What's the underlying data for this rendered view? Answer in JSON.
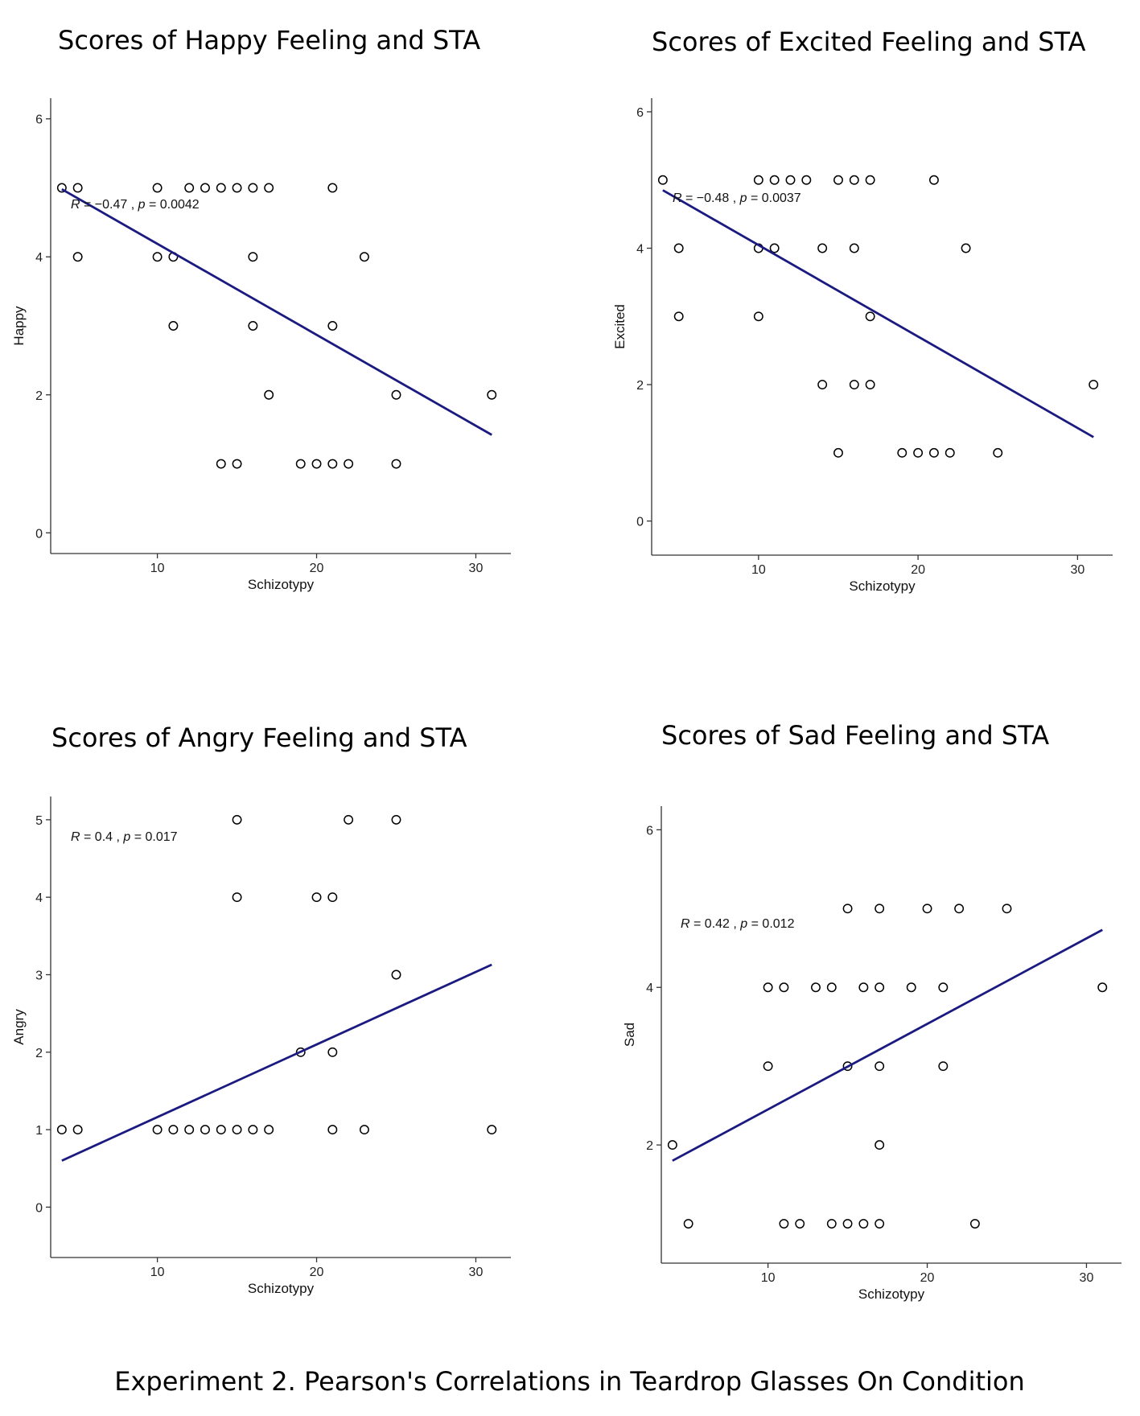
{
  "caption": "Experiment 2. Pearson's Correlations in Teardrop Glasses On Condition",
  "chart_data": [
    {
      "type": "scatter",
      "title": "Scores of Happy Feeling and STA",
      "xlabel": "Schizotypy",
      "ylabel": "Happy",
      "xlim": [
        3.3,
        32.2
      ],
      "ylim": [
        -0.3,
        6.3
      ],
      "xticks": [
        10,
        20,
        30
      ],
      "yticks": [
        0,
        2,
        4,
        6
      ],
      "annotation": {
        "r_label": "R",
        "r_value": " = −0.47 , ",
        "p_label": "p",
        "p_value": " = 0.0042"
      },
      "points": [
        [
          4,
          5
        ],
        [
          5,
          5
        ],
        [
          5,
          4
        ],
        [
          10,
          5
        ],
        [
          10,
          4
        ],
        [
          11,
          4
        ],
        [
          11,
          3
        ],
        [
          12,
          5
        ],
        [
          13,
          5
        ],
        [
          14,
          5
        ],
        [
          14,
          1
        ],
        [
          15,
          5
        ],
        [
          15,
          1
        ],
        [
          16,
          5
        ],
        [
          16,
          4
        ],
        [
          16,
          3
        ],
        [
          17,
          5
        ],
        [
          17,
          2
        ],
        [
          19,
          1
        ],
        [
          20,
          1
        ],
        [
          21,
          5
        ],
        [
          21,
          3
        ],
        [
          21,
          1
        ],
        [
          22,
          1
        ],
        [
          23,
          4
        ],
        [
          25,
          2
        ],
        [
          25,
          1
        ],
        [
          31,
          2
        ]
      ],
      "fit": [
        [
          4,
          4.98
        ],
        [
          31,
          1.42
        ]
      ]
    },
    {
      "type": "scatter",
      "title": "Scores of Excited Feeling and STA",
      "xlabel": "Schizotypy",
      "ylabel": "Excited",
      "xlim": [
        3.3,
        32.2
      ],
      "ylim": [
        -0.5,
        6.2
      ],
      "xticks": [
        10,
        20,
        30
      ],
      "yticks": [
        0,
        2,
        4,
        6
      ],
      "annotation": {
        "r_label": "R",
        "r_value": " = −0.48 , ",
        "p_label": "p",
        "p_value": " = 0.0037"
      },
      "points": [
        [
          4,
          5
        ],
        [
          5,
          4
        ],
        [
          5,
          3
        ],
        [
          10,
          5
        ],
        [
          10,
          4
        ],
        [
          10,
          3
        ],
        [
          11,
          5
        ],
        [
          11,
          4
        ],
        [
          12,
          5
        ],
        [
          13,
          5
        ],
        [
          14,
          4
        ],
        [
          14,
          2
        ],
        [
          15,
          5
        ],
        [
          15,
          1
        ],
        [
          16,
          5
        ],
        [
          16,
          4
        ],
        [
          16,
          2
        ],
        [
          17,
          5
        ],
        [
          17,
          3
        ],
        [
          17,
          2
        ],
        [
          19,
          1
        ],
        [
          20,
          1
        ],
        [
          21,
          5
        ],
        [
          21,
          1
        ],
        [
          22,
          1
        ],
        [
          23,
          4
        ],
        [
          25,
          1
        ],
        [
          31,
          2
        ]
      ],
      "fit": [
        [
          4,
          4.85
        ],
        [
          31,
          1.23
        ]
      ]
    },
    {
      "type": "scatter",
      "title": "Scores of Angry Feeling and STA",
      "xlabel": "Schizotypy",
      "ylabel": "Angry",
      "xlim": [
        3.3,
        32.2
      ],
      "ylim": [
        -0.65,
        5.3
      ],
      "xticks": [
        10,
        20,
        30
      ],
      "yticks": [
        0,
        1,
        2,
        3,
        4,
        5
      ],
      "annotation": {
        "r_label": "R",
        "r_value": " = 0.4 , ",
        "p_label": "p",
        "p_value": " = 0.017"
      },
      "points": [
        [
          4,
          1
        ],
        [
          5,
          1
        ],
        [
          10,
          1
        ],
        [
          11,
          1
        ],
        [
          12,
          1
        ],
        [
          13,
          1
        ],
        [
          14,
          1
        ],
        [
          15,
          5
        ],
        [
          15,
          4
        ],
        [
          15,
          1
        ],
        [
          16,
          1
        ],
        [
          17,
          1
        ],
        [
          19,
          2
        ],
        [
          20,
          4
        ],
        [
          21,
          4
        ],
        [
          21,
          2
        ],
        [
          21,
          1
        ],
        [
          22,
          5
        ],
        [
          23,
          1
        ],
        [
          25,
          5
        ],
        [
          25,
          3
        ],
        [
          31,
          1
        ]
      ],
      "fit": [
        [
          4,
          0.6
        ],
        [
          31,
          3.13
        ]
      ]
    },
    {
      "type": "scatter",
      "title": "Scores of Sad Feeling and STA",
      "xlabel": "Schizotypy",
      "ylabel": "Sad",
      "xlim": [
        3.3,
        32.2
      ],
      "ylim": [
        0.5,
        6.3
      ],
      "xticks": [
        10,
        20,
        30
      ],
      "yticks": [
        2,
        4,
        6
      ],
      "annotation": {
        "r_label": "R",
        "r_value": " = 0.42 , ",
        "p_label": "p",
        "p_value": " = 0.012"
      },
      "points": [
        [
          4,
          2
        ],
        [
          5,
          1
        ],
        [
          10,
          4
        ],
        [
          10,
          3
        ],
        [
          11,
          4
        ],
        [
          11,
          1
        ],
        [
          12,
          1
        ],
        [
          13,
          4
        ],
        [
          14,
          4
        ],
        [
          14,
          1
        ],
        [
          15,
          5
        ],
        [
          15,
          3
        ],
        [
          15,
          1
        ],
        [
          16,
          4
        ],
        [
          16,
          1
        ],
        [
          17,
          5
        ],
        [
          17,
          4
        ],
        [
          17,
          3
        ],
        [
          17,
          2
        ],
        [
          17,
          1
        ],
        [
          19,
          4
        ],
        [
          20,
          5
        ],
        [
          21,
          4
        ],
        [
          21,
          3
        ],
        [
          22,
          5
        ],
        [
          23,
          1
        ],
        [
          25,
          5
        ],
        [
          31,
          4
        ]
      ],
      "fit": [
        [
          4,
          1.8
        ],
        [
          31,
          4.73
        ]
      ]
    }
  ]
}
